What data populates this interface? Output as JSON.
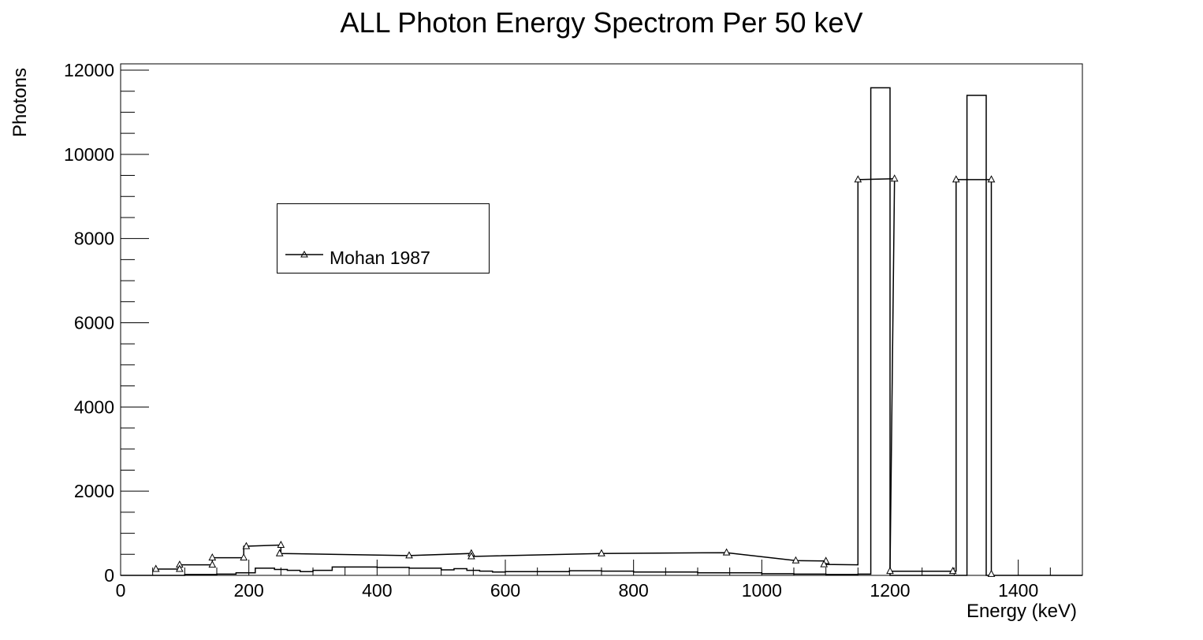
{
  "chart_data": {
    "type": "line",
    "title": "ALL Photon Energy Spectrom Per 50 keV",
    "xlabel": "Energy (keV)",
    "ylabel": "Photons",
    "xlim": [
      0,
      1500
    ],
    "ylim": [
      0,
      12200
    ],
    "x_ticks": [
      0,
      200,
      400,
      600,
      800,
      1000,
      1200,
      1400
    ],
    "y_ticks": [
      0,
      2000,
      4000,
      6000,
      8000,
      10000,
      12000
    ],
    "grid": false,
    "legend_position": "upper-left",
    "series": [
      {
        "name": "Mohan 1987",
        "style": "step-line-with-triangle-markers",
        "points": [
          [
            55,
            150
          ],
          [
            92,
            150
          ],
          [
            92,
            250
          ],
          [
            143,
            250
          ],
          [
            143,
            420
          ],
          [
            192,
            420
          ],
          [
            192,
            690
          ],
          [
            250,
            720
          ],
          [
            250,
            520
          ],
          [
            450,
            470
          ],
          [
            547,
            520
          ],
          [
            547,
            450
          ],
          [
            750,
            520
          ],
          [
            945,
            540
          ],
          [
            1053,
            350
          ],
          [
            1100,
            340
          ],
          [
            1100,
            260
          ],
          [
            1150,
            250
          ],
          [
            1150,
            9400
          ],
          [
            1207,
            9420
          ],
          [
            1207,
            9420
          ],
          [
            1200,
            100
          ],
          [
            1303,
            100
          ],
          [
            1303,
            9400
          ],
          [
            1358,
            9400
          ],
          [
            1358,
            30
          ]
        ],
        "markers": [
          [
            55,
            150
          ],
          [
            92,
            250
          ],
          [
            92,
            150
          ],
          [
            143,
            420
          ],
          [
            143,
            250
          ],
          [
            192,
            420
          ],
          [
            196,
            690
          ],
          [
            250,
            720
          ],
          [
            248,
            520
          ],
          [
            450,
            470
          ],
          [
            547,
            520
          ],
          [
            547,
            450
          ],
          [
            750,
            520
          ],
          [
            945,
            540
          ],
          [
            1053,
            350
          ],
          [
            1100,
            340
          ],
          [
            1097,
            260
          ],
          [
            1150,
            9400
          ],
          [
            1207,
            9420
          ],
          [
            1200,
            100
          ],
          [
            1298,
            100
          ],
          [
            1303,
            9400
          ],
          [
            1358,
            9400
          ],
          [
            1358,
            30
          ]
        ]
      },
      {
        "name": "",
        "style": "histogram",
        "bin_edges": [
          0,
          50,
          100,
          150,
          180,
          210,
          220,
          240,
          260,
          280,
          300,
          330,
          400,
          450,
          500,
          520,
          540,
          560,
          580,
          600,
          700,
          750,
          800,
          900,
          1000,
          1050,
          1100,
          1150,
          1170,
          1200,
          1300,
          1320,
          1350,
          1400,
          1500
        ],
        "counts": [
          0,
          0,
          20,
          30,
          60,
          170,
          170,
          140,
          120,
          90,
          120,
          200,
          190,
          170,
          130,
          160,
          120,
          100,
          80,
          90,
          110,
          100,
          80,
          60,
          40,
          30,
          20,
          30,
          11580,
          0,
          0,
          11400,
          0,
          0
        ]
      }
    ]
  }
}
